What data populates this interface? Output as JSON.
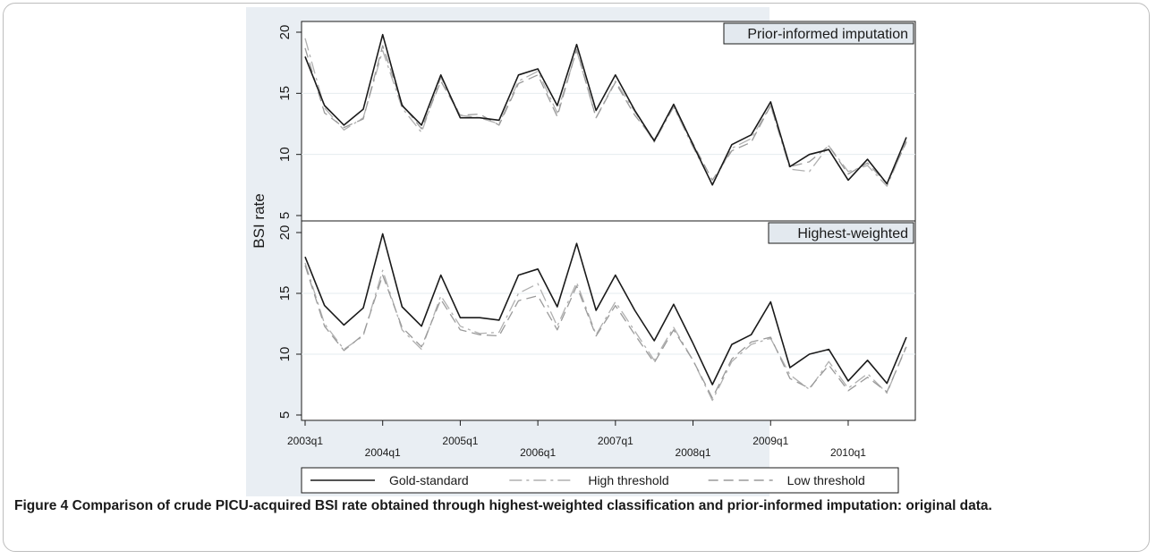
{
  "figure": {
    "caption_label": "Figure 4",
    "caption_text": "Comparison of crude PICU-acquired BSI rate obtained through highest-weighted classification and prior-informed imputation: original data."
  },
  "chart_data": {
    "type": "line",
    "ylabel": "BSI rate",
    "x": [
      "2003q1",
      "2003q2",
      "2003q3",
      "2003q4",
      "2004q1",
      "2004q2",
      "2004q3",
      "2004q4",
      "2005q1",
      "2005q2",
      "2005q3",
      "2005q4",
      "2006q1",
      "2006q2",
      "2006q3",
      "2006q4",
      "2007q1",
      "2007q2",
      "2007q3",
      "2007q4",
      "2008q1",
      "2008q2",
      "2008q3",
      "2008q4",
      "2009q1",
      "2009q2",
      "2009q3",
      "2009q4",
      "2010q1",
      "2010q2",
      "2010q3",
      "2010q4"
    ],
    "x_tick_labels": [
      "2003q1",
      "2004q1",
      "2005q1",
      "2006q1",
      "2007q1",
      "2008q1",
      "2009q1",
      "2010q1"
    ],
    "ylim": [
      5,
      20
    ],
    "y_ticks": [
      5,
      10,
      15,
      20
    ],
    "legend": {
      "placement": "bottom",
      "entries": [
        {
          "name": "Gold-standard",
          "color": "#1a1a1a",
          "dash": "solid"
        },
        {
          "name": "High threshold",
          "color": "#b0b0b0",
          "dash": "dashdot"
        },
        {
          "name": "Low threshold",
          "color": "#9a9a9a",
          "dash": "dash"
        }
      ]
    },
    "panels": [
      {
        "title": "Prior-informed imputation",
        "series": [
          {
            "name": "Gold-standard",
            "values": [
              18.0,
              14.0,
              12.4,
              13.7,
              19.8,
              14.0,
              12.4,
              16.5,
              13.0,
              13.0,
              12.8,
              16.5,
              17.0,
              14.0,
              19.0,
              13.6,
              16.5,
              13.6,
              11.1,
              14.1,
              10.8,
              7.5,
              10.8,
              11.6,
              14.3,
              9.0,
              10.0,
              10.4,
              7.9,
              9.6,
              7.6,
              11.4
            ]
          },
          {
            "name": "High threshold",
            "values": [
              19.5,
              13.8,
              12.0,
              13.0,
              18.5,
              13.8,
              11.8,
              16.3,
              13.2,
              13.0,
              12.5,
              16.0,
              16.8,
              13.4,
              18.5,
              13.0,
              16.0,
              13.5,
              11.0,
              13.9,
              10.6,
              7.6,
              10.5,
              11.3,
              14.0,
              8.8,
              8.6,
              10.7,
              8.6,
              9.1,
              7.4,
              11.1
            ]
          },
          {
            "name": "Low threshold",
            "values": [
              18.7,
              13.4,
              12.2,
              12.9,
              18.9,
              14.1,
              12.1,
              16.0,
              13.2,
              13.3,
              12.4,
              15.8,
              16.5,
              13.1,
              18.6,
              13.0,
              15.9,
              13.2,
              11.2,
              13.9,
              10.9,
              7.9,
              10.3,
              11.0,
              14.0,
              9.0,
              9.4,
              10.7,
              8.4,
              9.3,
              7.6,
              11.0
            ]
          }
        ]
      },
      {
        "title": "Highest-weighted",
        "series": [
          {
            "name": "Gold-standard",
            "values": [
              18.0,
              14.0,
              12.4,
              13.8,
              19.9,
              13.9,
              12.3,
              16.5,
              13.0,
              13.0,
              12.8,
              16.5,
              17.0,
              13.9,
              19.1,
              13.6,
              16.5,
              13.6,
              11.1,
              14.1,
              10.9,
              7.5,
              10.8,
              11.6,
              14.3,
              8.9,
              10.0,
              10.4,
              7.8,
              9.5,
              7.6,
              11.4
            ]
          },
          {
            "name": "High threshold",
            "values": [
              17.5,
              12.5,
              10.4,
              11.5,
              16.9,
              12.0,
              10.4,
              14.8,
              12.3,
              11.7,
              11.8,
              15.0,
              15.8,
              12.3,
              15.9,
              11.6,
              14.3,
              11.9,
              9.5,
              12.2,
              9.5,
              6.2,
              9.4,
              10.8,
              11.3,
              8.3,
              7.1,
              9.4,
              7.2,
              8.4,
              6.8,
              10.7
            ]
          },
          {
            "name": "Low threshold",
            "values": [
              17.3,
              12.3,
              10.3,
              11.6,
              16.5,
              12.2,
              10.6,
              14.5,
              12.0,
              11.6,
              11.5,
              14.4,
              14.8,
              12.0,
              15.6,
              11.5,
              14.0,
              11.6,
              9.3,
              12.0,
              9.5,
              6.4,
              9.6,
              11.0,
              11.4,
              8.0,
              7.2,
              9.1,
              7.0,
              8.1,
              6.9,
              10.6
            ]
          }
        ]
      }
    ]
  }
}
